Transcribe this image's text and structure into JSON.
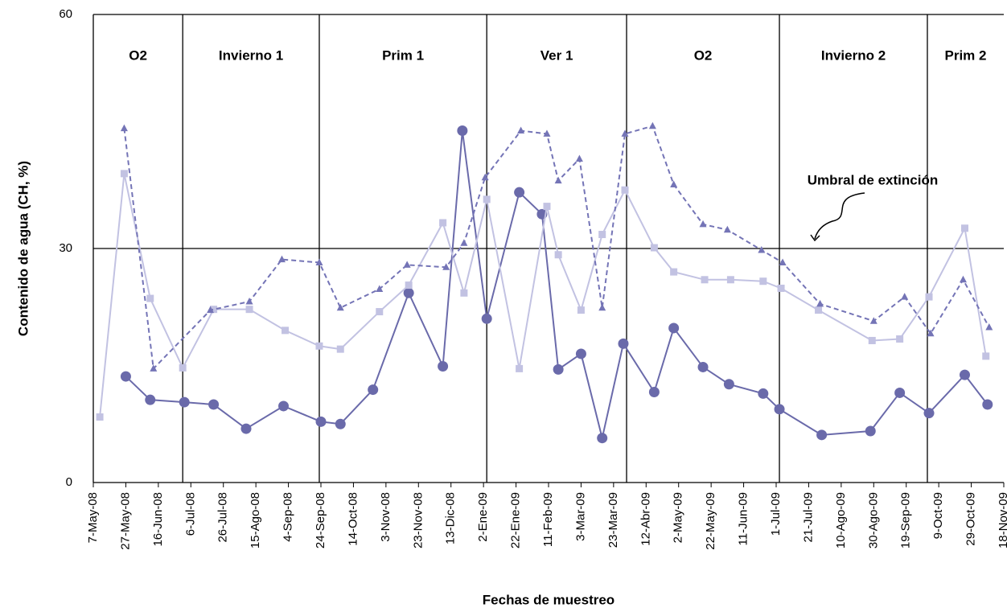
{
  "chart_data": {
    "type": "line",
    "ylabel": "Contenido de agua (CH, %)",
    "xlabel": "Fechas de muestreo",
    "annotation": "Umbral de extinción",
    "xlim": [
      "2008-05-07",
      "2009-11-18"
    ],
    "ylim": [
      0,
      60
    ],
    "yticks": [
      0,
      30,
      60
    ],
    "grid": true,
    "xticks": [
      {
        "value": "2008-05-07",
        "label": "7-May-08"
      },
      {
        "value": "2008-05-27",
        "label": "27-May-08"
      },
      {
        "value": "2008-06-16",
        "label": "16-Jun-08"
      },
      {
        "value": "2008-07-06",
        "label": "6-Jul-08"
      },
      {
        "value": "2008-07-26",
        "label": "26-Jul-08"
      },
      {
        "value": "2008-08-15",
        "label": "15-Ago-08"
      },
      {
        "value": "2008-09-04",
        "label": "4-Sep-08"
      },
      {
        "value": "2008-09-24",
        "label": "24-Sep-08"
      },
      {
        "value": "2008-10-14",
        "label": "14-Oct-08"
      },
      {
        "value": "2008-11-03",
        "label": "3-Nov-08"
      },
      {
        "value": "2008-11-23",
        "label": "23-Nov-08"
      },
      {
        "value": "2008-12-13",
        "label": "13-Dic-08"
      },
      {
        "value": "2009-01-02",
        "label": "2-Ene-09"
      },
      {
        "value": "2009-01-22",
        "label": "22-Ene-09"
      },
      {
        "value": "2009-02-11",
        "label": "11-Feb-09"
      },
      {
        "value": "2009-03-03",
        "label": "3-Mar-09"
      },
      {
        "value": "2009-03-23",
        "label": "23-Mar-09"
      },
      {
        "value": "2009-04-12",
        "label": "12-Abr-09"
      },
      {
        "value": "2009-05-02",
        "label": "2-May-09"
      },
      {
        "value": "2009-05-22",
        "label": "22-May-09"
      },
      {
        "value": "2009-06-11",
        "label": "11-Jun-09"
      },
      {
        "value": "2009-07-01",
        "label": "1-Jul-09"
      },
      {
        "value": "2009-07-21",
        "label": "21-Jul-09"
      },
      {
        "value": "2009-08-10",
        "label": "10-Ago-09"
      },
      {
        "value": "2009-08-30",
        "label": "30-Ago-09"
      },
      {
        "value": "2009-09-19",
        "label": "19-Sep-09"
      },
      {
        "value": "2009-10-09",
        "label": "9-Oct-09"
      },
      {
        "value": "2009-10-29",
        "label": "29-Oct-09"
      },
      {
        "value": "2009-11-18",
        "label": "18-Nov-09"
      }
    ],
    "period_dividers": [
      "2008-07-01",
      "2008-09-23",
      "2009-01-04",
      "2009-03-31",
      "2009-07-03",
      "2009-10-02"
    ],
    "period_labels": [
      "O2",
      "Invierno 1",
      "Prim 1",
      "Ver 1",
      "O2",
      "Invierno 2",
      "Prim 2"
    ],
    "series": [
      {
        "color": "#6a6aaa",
        "marker": "circle",
        "dashed": false,
        "x": [
          "2008-05-27",
          "2008-06-11",
          "2008-07-02",
          "2008-07-20",
          "2008-08-09",
          "2008-09-01",
          "2008-09-24",
          "2008-10-06",
          "2008-10-26",
          "2008-11-17",
          "2008-12-08",
          "2008-12-20",
          "2009-01-04",
          "2009-01-24",
          "2009-02-07",
          "2009-02-17",
          "2009-03-03",
          "2009-03-16",
          "2009-03-29",
          "2009-04-17",
          "2009-04-29",
          "2009-05-17",
          "2009-06-02",
          "2009-06-23",
          "2009-07-03",
          "2009-07-29",
          "2009-08-28",
          "2009-09-15",
          "2009-10-03",
          "2009-10-25",
          "2009-11-08"
        ],
        "values": [
          13.6,
          10.6,
          10.3,
          10.0,
          6.9,
          9.8,
          7.8,
          7.5,
          11.9,
          24.3,
          14.9,
          45.1,
          21.0,
          37.2,
          34.4,
          14.5,
          16.5,
          5.7,
          17.8,
          11.6,
          19.8,
          14.8,
          12.6,
          11.4,
          9.4,
          6.1,
          6.6,
          11.5,
          8.9,
          13.8,
          10.0
        ]
      },
      {
        "color": "#c2c2e2",
        "marker": "square",
        "dashed": false,
        "x": [
          "2008-05-11",
          "2008-05-26",
          "2008-06-11",
          "2008-07-01",
          "2008-07-20",
          "2008-08-11",
          "2008-09-02",
          "2008-09-23",
          "2008-10-06",
          "2008-10-30",
          "2008-11-17",
          "2008-12-08",
          "2008-12-21",
          "2009-01-04",
          "2009-01-24",
          "2009-02-10",
          "2009-02-17",
          "2009-03-03",
          "2009-03-16",
          "2009-03-30",
          "2009-04-17",
          "2009-04-29",
          "2009-05-18",
          "2009-06-03",
          "2009-06-23",
          "2009-07-04",
          "2009-07-27",
          "2009-08-29",
          "2009-09-15",
          "2009-10-03",
          "2009-10-25",
          "2009-11-07"
        ],
        "values": [
          8.4,
          39.6,
          23.6,
          14.7,
          22.2,
          22.2,
          19.5,
          17.5,
          17.1,
          21.9,
          25.3,
          33.3,
          24.3,
          36.3,
          14.6,
          35.4,
          29.2,
          22.1,
          31.8,
          37.5,
          30.1,
          27.0,
          26.0,
          26.0,
          25.8,
          24.9,
          22.1,
          18.2,
          18.4,
          23.8,
          32.6,
          16.2
        ]
      },
      {
        "color": "#7474b6",
        "marker": "triangle",
        "dashed": true,
        "x": [
          "2008-05-26",
          "2008-06-13",
          "2008-07-18",
          "2008-08-11",
          "2008-08-31",
          "2008-09-23",
          "2008-10-06",
          "2008-10-30",
          "2008-11-16",
          "2008-12-10",
          "2008-12-21",
          "2009-01-03",
          "2009-01-25",
          "2009-02-10",
          "2009-02-17",
          "2009-03-02",
          "2009-03-16",
          "2009-03-30",
          "2009-04-16",
          "2009-04-29",
          "2009-05-17",
          "2009-06-01",
          "2009-06-22",
          "2009-07-05",
          "2009-07-28",
          "2009-08-30",
          "2009-09-18",
          "2009-10-04",
          "2009-10-24",
          "2009-11-09"
        ],
        "values": [
          45.4,
          14.6,
          22.1,
          23.2,
          28.6,
          28.2,
          22.4,
          24.8,
          27.9,
          27.6,
          30.7,
          39.1,
          45.1,
          44.7,
          38.7,
          41.5,
          22.4,
          44.7,
          45.7,
          38.2,
          33.1,
          32.4,
          29.8,
          28.2,
          22.9,
          20.7,
          23.8,
          19.1,
          26.0,
          19.9
        ]
      }
    ]
  }
}
